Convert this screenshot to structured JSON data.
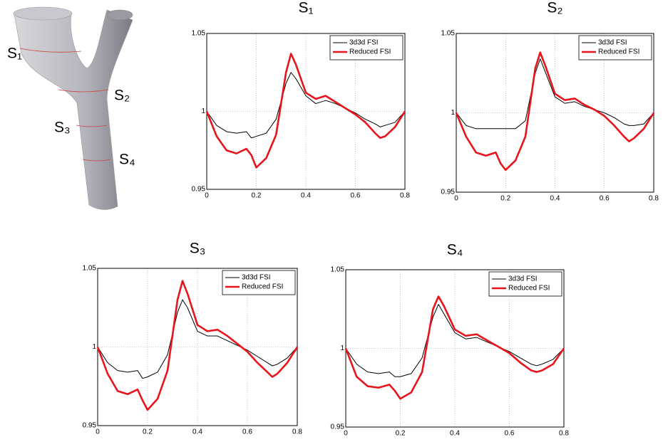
{
  "illustration": {
    "labels": [
      "S₁",
      "S₂",
      "S₃",
      "S₄"
    ]
  },
  "chart_data": [
    {
      "type": "line",
      "title": "S₁",
      "legend": "upper right",
      "grid": true,
      "xlim": [
        0,
        0.8
      ],
      "xticks": [
        0,
        0.2,
        0.4,
        0.6,
        0.8
      ],
      "ylim": [
        0.95,
        1.05
      ],
      "yticks": [
        0.95,
        1,
        1.05
      ],
      "x": [
        0,
        0.04,
        0.08,
        0.12,
        0.16,
        0.18,
        0.2,
        0.24,
        0.28,
        0.32,
        0.34,
        0.36,
        0.4,
        0.44,
        0.48,
        0.52,
        0.56,
        0.6,
        0.64,
        0.68,
        0.7,
        0.72,
        0.76,
        0.8
      ],
      "series": [
        {
          "name": "3d3d FSI",
          "color": "#000000",
          "values": [
            1,
            0.991,
            0.987,
            0.986,
            0.987,
            0.983,
            0.984,
            0.986,
            0.995,
            1.018,
            1.025,
            1.021,
            1.01,
            1.005,
            1.007,
            1.005,
            1.002,
            0.999,
            0.995,
            0.992,
            0.99,
            0.991,
            0.993,
            1
          ]
        },
        {
          "name": "Reduced FSI",
          "color": "#e8141c",
          "values": [
            1,
            0.984,
            0.975,
            0.973,
            0.976,
            0.972,
            0.964,
            0.97,
            0.985,
            1.025,
            1.037,
            1.03,
            1.012,
            1.008,
            1.01,
            1.006,
            1.002,
            0.998,
            0.993,
            0.986,
            0.983,
            0.984,
            0.99,
            1
          ]
        }
      ]
    },
    {
      "type": "line",
      "title": "S₂",
      "legend": "upper right",
      "grid": true,
      "xlim": [
        0,
        0.8
      ],
      "xticks": [
        0,
        0.2,
        0.4,
        0.6,
        0.8
      ],
      "ylim": [
        0.95,
        1.05
      ],
      "yticks": [
        0.95,
        1,
        1.05
      ],
      "x": [
        0,
        0.04,
        0.08,
        0.12,
        0.16,
        0.18,
        0.2,
        0.24,
        0.28,
        0.32,
        0.34,
        0.36,
        0.4,
        0.44,
        0.48,
        0.52,
        0.56,
        0.6,
        0.64,
        0.68,
        0.7,
        0.72,
        0.76,
        0.8
      ],
      "series": [
        {
          "name": "3d3d FSI",
          "color": "#000000",
          "values": [
            1,
            0.992,
            0.99,
            0.99,
            0.99,
            0.99,
            0.99,
            0.99,
            0.995,
            1.025,
            1.034,
            1.026,
            1.01,
            1.006,
            1.007,
            1.004,
            1.002,
            1,
            0.997,
            0.993,
            0.992,
            0.992,
            0.993,
            1
          ]
        },
        {
          "name": "Reduced FSI",
          "color": "#e8141c",
          "values": [
            1,
            0.985,
            0.975,
            0.973,
            0.975,
            0.968,
            0.964,
            0.97,
            0.985,
            1.028,
            1.038,
            1.03,
            1.012,
            1.008,
            1.009,
            1.005,
            1.002,
            0.998,
            0.992,
            0.985,
            0.982,
            0.984,
            0.99,
            1
          ]
        }
      ]
    },
    {
      "type": "line",
      "title": "S₃",
      "legend": "upper right",
      "grid": true,
      "xlim": [
        0,
        0.8
      ],
      "xticks": [
        0,
        0.2,
        0.4,
        0.6,
        0.8
      ],
      "ylim": [
        0.95,
        1.05
      ],
      "yticks": [
        0.95,
        1,
        1.05
      ],
      "x": [
        0,
        0.04,
        0.08,
        0.12,
        0.16,
        0.18,
        0.2,
        0.24,
        0.28,
        0.32,
        0.34,
        0.36,
        0.4,
        0.44,
        0.48,
        0.52,
        0.56,
        0.6,
        0.64,
        0.68,
        0.7,
        0.72,
        0.76,
        0.8
      ],
      "series": [
        {
          "name": "3d3d FSI",
          "color": "#000000",
          "values": [
            1,
            0.99,
            0.985,
            0.984,
            0.985,
            0.98,
            0.981,
            0.984,
            0.995,
            1.022,
            1.03,
            1.025,
            1.01,
            1.007,
            1.007,
            1.004,
            1.001,
            0.998,
            0.994,
            0.99,
            0.988,
            0.989,
            0.993,
            1
          ]
        },
        {
          "name": "Reduced FSI",
          "color": "#e8141c",
          "values": [
            1,
            0.983,
            0.972,
            0.97,
            0.973,
            0.966,
            0.96,
            0.967,
            0.985,
            1.03,
            1.042,
            1.034,
            1.014,
            1.01,
            1.011,
            1.007,
            1.002,
            0.997,
            0.99,
            0.984,
            0.981,
            0.983,
            0.99,
            1
          ]
        }
      ]
    },
    {
      "type": "line",
      "title": "S₄",
      "legend": "upper right",
      "grid": true,
      "xlim": [
        0,
        0.8
      ],
      "xticks": [
        0,
        0.2,
        0.4,
        0.6,
        0.8
      ],
      "ylim": [
        0.95,
        1.05
      ],
      "yticks": [
        0.95,
        1,
        1.05
      ],
      "x": [
        0,
        0.04,
        0.08,
        0.12,
        0.16,
        0.18,
        0.2,
        0.24,
        0.28,
        0.32,
        0.34,
        0.36,
        0.4,
        0.44,
        0.48,
        0.52,
        0.56,
        0.6,
        0.64,
        0.68,
        0.7,
        0.72,
        0.76,
        0.8
      ],
      "series": [
        {
          "name": "3d3d FSI",
          "color": "#000000",
          "values": [
            1,
            0.99,
            0.985,
            0.984,
            0.985,
            0.982,
            0.982,
            0.984,
            0.994,
            1.02,
            1.028,
            1.022,
            1.01,
            1.006,
            1.007,
            1.004,
            1.001,
            0.998,
            0.994,
            0.99,
            0.989,
            0.99,
            0.993,
            1
          ]
        },
        {
          "name": "Reduced FSI",
          "color": "#e8141c",
          "values": [
            1,
            0.982,
            0.976,
            0.975,
            0.977,
            0.973,
            0.968,
            0.972,
            0.985,
            1.025,
            1.033,
            1.027,
            1.012,
            1.008,
            1.009,
            1.005,
            1.001,
            0.997,
            0.991,
            0.986,
            0.985,
            0.986,
            0.99,
            1
          ]
        }
      ]
    }
  ]
}
